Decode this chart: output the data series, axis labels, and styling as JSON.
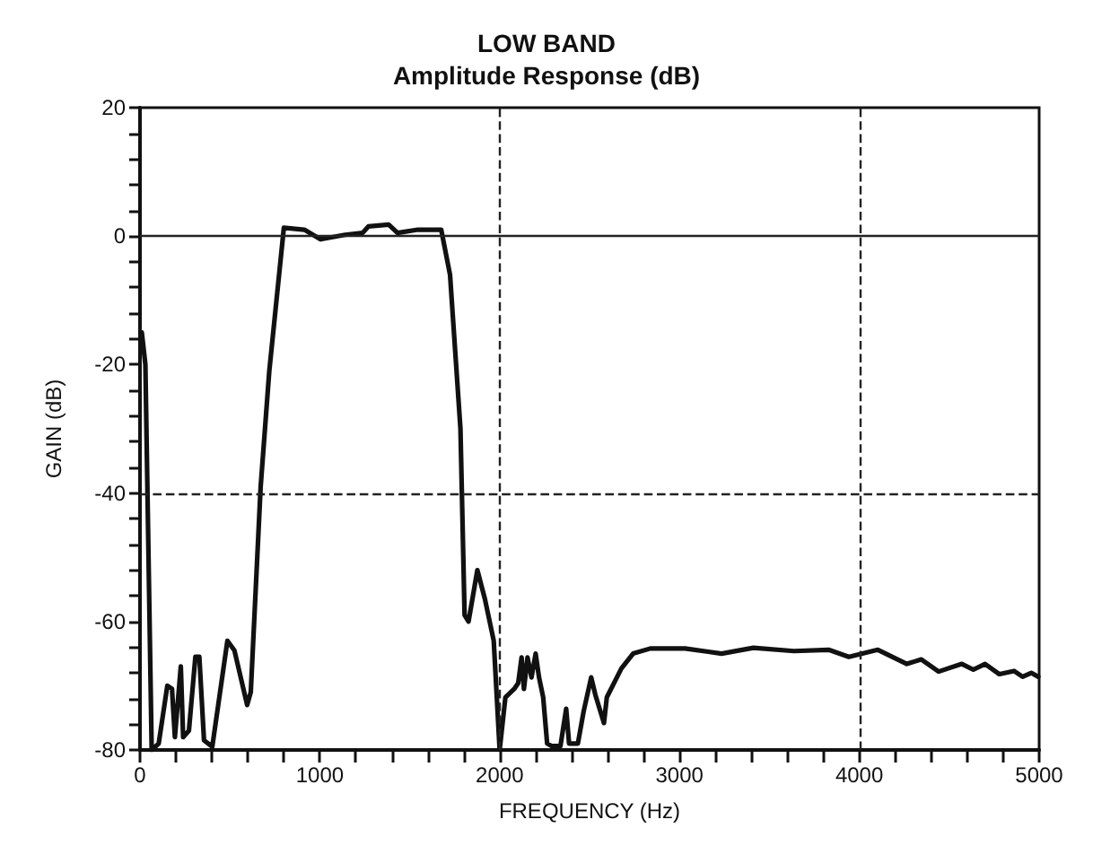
{
  "chart_data": {
    "type": "line",
    "title": "LOW BAND",
    "subtitle": "Amplitude Response (dB)",
    "xlabel": "FREQUENCY (Hz)",
    "ylabel": "GAIN (dB)",
    "xlim": [
      0,
      5000
    ],
    "xticks": [
      0,
      {
        "value": 200,
        "label": null
      },
      {
        "value": 400,
        "label": null
      },
      {
        "value": 600,
        "label": null
      },
      {
        "value": 800,
        "label": null
      },
      1000,
      {
        "value": 1200,
        "label": null
      },
      {
        "value": 1400,
        "label": null
      },
      {
        "value": 1600,
        "label": null
      },
      {
        "value": 1800,
        "label": null
      },
      2000,
      {
        "value": 2200,
        "label": null
      },
      {
        "value": 2400,
        "label": null
      },
      {
        "value": 2600,
        "label": null
      },
      {
        "value": 2800,
        "label": null
      },
      3000,
      {
        "value": 3200,
        "label": null
      },
      {
        "value": 3400,
        "label": null
      },
      {
        "value": 3600,
        "label": null
      },
      {
        "value": 3800,
        "label": null
      },
      4000,
      {
        "value": 4200,
        "label": null
      },
      {
        "value": 4400,
        "label": null
      },
      {
        "value": 4600,
        "label": null
      },
      {
        "value": 4800,
        "label": null
      },
      5000
    ],
    "ylim": [
      -80,
      20
    ],
    "yticks": [
      -80,
      {
        "value": -76,
        "label": null
      },
      {
        "value": -72,
        "label": null
      },
      {
        "value": -68,
        "label": null
      },
      {
        "value": -64,
        "label": null
      },
      -60,
      {
        "value": -56,
        "label": null
      },
      {
        "value": -52,
        "label": null
      },
      {
        "value": -48,
        "label": null
      },
      {
        "value": -44,
        "label": null
      },
      -40,
      {
        "value": -36,
        "label": null
      },
      {
        "value": -32,
        "label": null
      },
      {
        "value": -28,
        "label": null
      },
      {
        "value": -24,
        "label": null
      },
      -20,
      {
        "value": -16,
        "label": null
      },
      {
        "value": -12,
        "label": null
      },
      {
        "value": -8,
        "label": null
      },
      {
        "value": -4,
        "label": null
      },
      0,
      {
        "value": 4,
        "label": null
      },
      {
        "value": 8,
        "label": null
      },
      {
        "value": 12,
        "label": null
      },
      {
        "value": 16,
        "label": null
      },
      20
    ],
    "grid": false,
    "line_style": "solid",
    "ref_lines": [
      {
        "axis": "y",
        "value": 0,
        "line_style": "solid",
        "color": "#222222"
      },
      {
        "axis": "y",
        "value": -40,
        "line_style": "dashed",
        "color": "#222222"
      },
      {
        "axis": "x",
        "value": 2000,
        "line_style": "dashed",
        "color": "#222222"
      },
      {
        "axis": "x",
        "value": 4000,
        "line_style": "dashed",
        "color": "#222222"
      }
    ],
    "series": [
      {
        "color": "#111111",
        "x": [
          10,
          30,
          65,
          104,
          152,
          178,
          194,
          227,
          240,
          272,
          308,
          330,
          356,
          402,
          486,
          525,
          596,
          616,
          671,
          719,
          800,
          914,
          1004,
          1140,
          1238,
          1270,
          1383,
          1432,
          1545,
          1675,
          1724,
          1782,
          1805,
          1827,
          1876,
          1918,
          1967,
          2000,
          2032,
          2081,
          2103,
          2122,
          2135,
          2155,
          2177,
          2200,
          2219,
          2242,
          2264,
          2290,
          2338,
          2370,
          2386,
          2435,
          2467,
          2509,
          2532,
          2580,
          2596,
          2677,
          2742,
          2838,
          3031,
          3160,
          3234,
          3411,
          3636,
          3829,
          3942,
          4103,
          4264,
          4345,
          4441,
          4570,
          4634,
          4699,
          4779,
          4860,
          4908,
          4956,
          4995
        ],
        "values": [
          -15,
          -20,
          -80,
          -79,
          -70,
          -70.5,
          -78,
          -67,
          -78,
          -77,
          -65.5,
          -65.5,
          -78.5,
          -79.5,
          -63,
          -64.5,
          -73,
          -71,
          -39,
          -21,
          1.3,
          1,
          -0.5,
          0.2,
          0.5,
          1.5,
          1.8,
          0.5,
          1,
          1,
          -6,
          -30,
          -59,
          -60,
          -52,
          -56.5,
          -63,
          -80,
          -71.8,
          -70.5,
          -69.6,
          -65.6,
          -70.5,
          -65.6,
          -68.7,
          -65,
          -68.7,
          -71.8,
          -79,
          -79.4,
          -79.4,
          -73.6,
          -79,
          -79,
          -74,
          -68.7,
          -71.4,
          -75.8,
          -71.8,
          -67.3,
          -65,
          -64.2,
          -64.2,
          -64.7,
          -65,
          -64.1,
          -64.6,
          -64.4,
          -65.5,
          -64.4,
          -66.6,
          -65.9,
          -67.8,
          -66.6,
          -67.5,
          -66.6,
          -68.2,
          -67.7,
          -68.6,
          -68,
          -68.6
        ]
      }
    ]
  }
}
